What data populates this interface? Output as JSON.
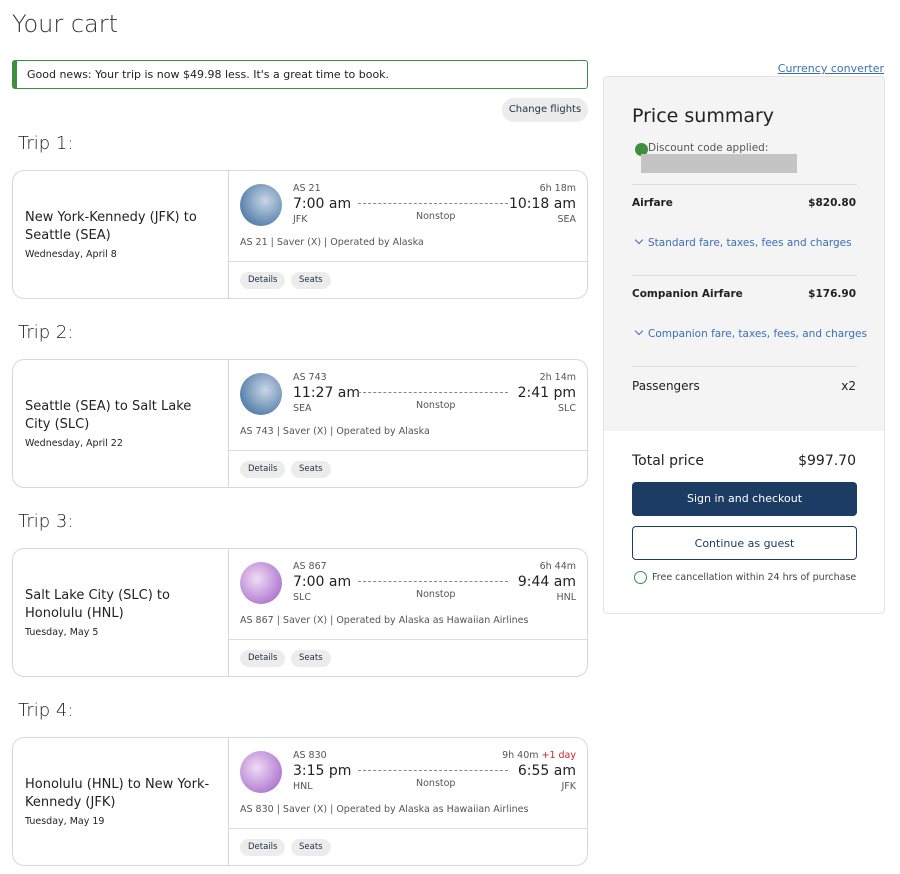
{
  "header": {
    "title": "Your cart",
    "currency_converter": "Currency converter"
  },
  "notice": "Good news: Your trip is now $49.98 less. It's a great time to book.",
  "change_flights": "Change flights",
  "trips": [
    {
      "label": "Trip 1:",
      "route": "New York-Kennedy (JFK) to Seattle (SEA)",
      "date": "Wednesday, April 8",
      "flight": "AS 21",
      "duration": "6h 18m",
      "depart_time": "7:00 am",
      "arrive_time": "10:18 am",
      "from": "JFK",
      "to": "SEA",
      "stops": "Nonstop",
      "details": "AS 21 | Saver (X) | Operated by Alaska",
      "buttons": [
        "Details",
        "Seats"
      ]
    },
    {
      "label": "Trip 2:",
      "route": "Seattle (SEA) to Salt Lake City (SLC)",
      "date": "Wednesday, April 22",
      "flight": "AS 743",
      "duration": "2h 14m",
      "depart_time": "11:27 am",
      "arrive_time": "2:41 pm",
      "from": "SEA",
      "to": "SLC",
      "stops": "Nonstop",
      "details": "AS 743 | Saver (X) | Operated by Alaska",
      "buttons": [
        "Details",
        "Seats"
      ]
    },
    {
      "label": "Trip 3:",
      "route": "Salt Lake City (SLC) to Honolulu (HNL)",
      "date": "Tuesday, May 5",
      "flight": "AS 867",
      "duration": "6h 44m",
      "depart_time": "7:00 am",
      "arrive_time": "9:44 am",
      "from": "SLC",
      "to": "HNL",
      "stops": "Nonstop",
      "details": "AS 867 | Saver (X) | Operated by Alaska as Hawaiian Airlines",
      "buttons": [
        "Details",
        "Seats"
      ]
    },
    {
      "label": "Trip 4:",
      "route": "Honolulu (HNL) to New York-Kennedy (JFK)",
      "date": "Tuesday, May 19",
      "flight": "AS 830",
      "duration": "9h 40m",
      "day_change": "+1 day",
      "depart_time": "3:15 pm",
      "arrive_time": "6:55 am",
      "from": "HNL",
      "to": "JFK",
      "stops": "Nonstop",
      "details": "AS 830 | Saver (X) | Operated by Alaska as Hawaiian Airlines",
      "buttons": [
        "Details",
        "Seats"
      ]
    }
  ],
  "summary": {
    "title": "Price summary",
    "discount": "Discount code applied:",
    "airfare_label": "Airfare",
    "airfare_value": "$820.80",
    "airfare_link": "Standard fare, taxes, fees and charges",
    "companion_label": "Companion Airfare",
    "companion_value": "$176.90",
    "companion_link": "Companion fare, taxes, fees, and charges",
    "passengers_label": "Passengers",
    "passengers_value": "x2",
    "total_label": "Total price",
    "total_value": "$997.70",
    "checkout": "Sign in and checkout",
    "guest": "Continue as guest",
    "cancellation": "Free cancellation within 24 hrs of purchase"
  }
}
